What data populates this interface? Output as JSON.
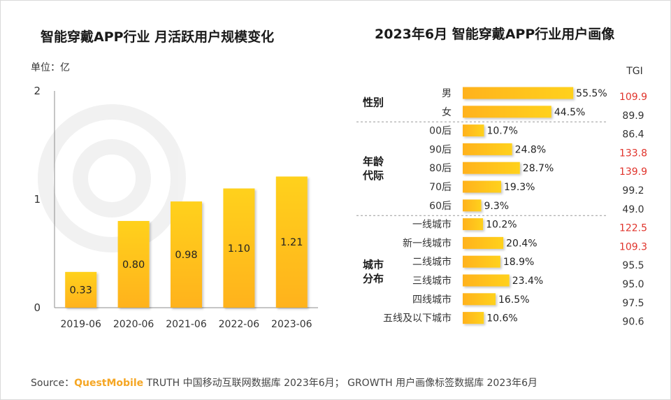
{
  "left": {
    "title": "智能穿戴APP行业 月活跃用户规模变化",
    "unit": "单位：亿"
  },
  "right": {
    "title": "2023年6月 智能穿戴APP行业用户画像",
    "tgi_header": "TGI"
  },
  "chart_data": [
    {
      "type": "bar",
      "title": "智能穿戴APP行业 月活跃用户规模变化",
      "ylabel": "单位：亿",
      "categories": [
        "2019-06",
        "2020-06",
        "2021-06",
        "2022-06",
        "2023-06"
      ],
      "values": [
        0.33,
        0.8,
        0.98,
        1.1,
        1.21
      ],
      "value_labels": [
        "0.33",
        "0.80",
        "0.98",
        "1.10",
        "1.21"
      ],
      "yticks": [
        0,
        1,
        2
      ],
      "ylim": [
        0,
        2
      ]
    },
    {
      "type": "bar",
      "orientation": "horizontal",
      "title": "2023年6月 智能穿戴APP行业用户画像",
      "groups": [
        {
          "name": "性别",
          "items": [
            {
              "label": "男",
              "value": 55.5,
              "text": "55.5%",
              "tgi": "109.9",
              "tgi_high": true
            },
            {
              "label": "女",
              "value": 44.5,
              "text": "44.5%",
              "tgi": "89.9",
              "tgi_high": false
            }
          ]
        },
        {
          "name": "年龄代际",
          "items": [
            {
              "label": "00后",
              "value": 10.7,
              "text": "10.7%",
              "tgi": "86.4",
              "tgi_high": false
            },
            {
              "label": "90后",
              "value": 24.8,
              "text": "24.8%",
              "tgi": "133.8",
              "tgi_high": true
            },
            {
              "label": "80后",
              "value": 28.7,
              "text": "28.7%",
              "tgi": "139.9",
              "tgi_high": true
            },
            {
              "label": "70后",
              "value": 19.3,
              "text": "19.3%",
              "tgi": "99.2",
              "tgi_high": false
            },
            {
              "label": "60后",
              "value": 9.3,
              "text": "9.3%",
              "tgi": "49.0",
              "tgi_high": false
            }
          ]
        },
        {
          "name": "城市分布",
          "items": [
            {
              "label": "一线城市",
              "value": 10.2,
              "text": "10.2%",
              "tgi": "122.5",
              "tgi_high": true
            },
            {
              "label": "新一线城市",
              "value": 20.4,
              "text": "20.4%",
              "tgi": "109.3",
              "tgi_high": true
            },
            {
              "label": "二线城市",
              "value": 18.9,
              "text": "18.9%",
              "tgi": "95.5",
              "tgi_high": false
            },
            {
              "label": "三线城市",
              "value": 23.4,
              "text": "23.4%",
              "tgi": "95.0",
              "tgi_high": false
            },
            {
              "label": "四线城市",
              "value": 16.5,
              "text": "16.5%",
              "tgi": "97.5",
              "tgi_high": false
            },
            {
              "label": "五线及以下城市",
              "value": 10.6,
              "text": "10.6%",
              "tgi": "90.6",
              "tgi_high": false
            }
          ]
        }
      ],
      "tgi_header": "TGI"
    }
  ],
  "source": {
    "prefix": "Source：",
    "brand": "QuestMobile",
    "text": " TRUTH 中国移动互联网数据库 2023年6月； GROWTH 用户画像标签数据库 2023年6月"
  },
  "colors": {
    "bar_top": "#ffd11a",
    "bar_bottom": "#ffb21f",
    "tgi_high": "#e0332b",
    "tgi_normal": "#333333"
  }
}
